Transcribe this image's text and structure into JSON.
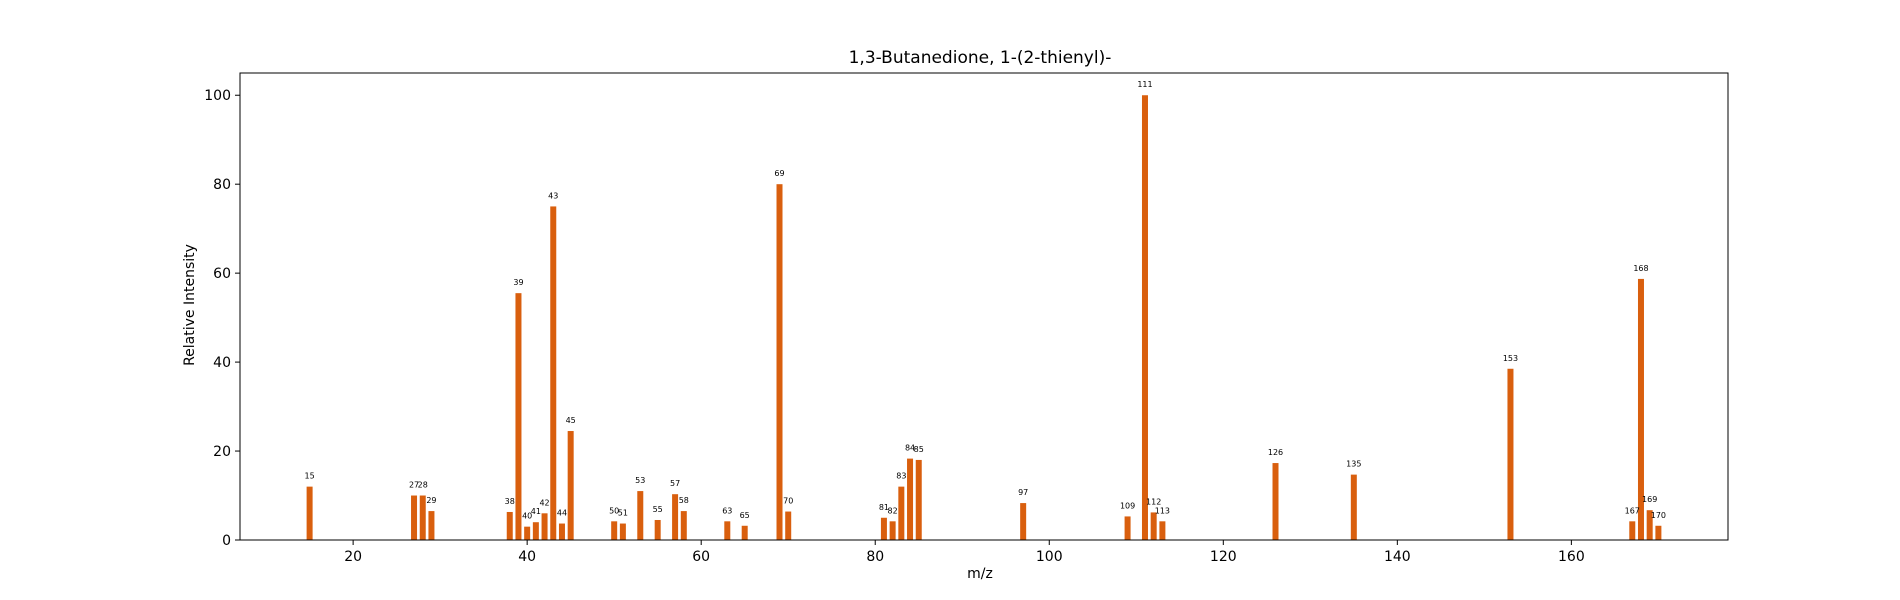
{
  "chart_data": {
    "type": "bar",
    "title": "1,3-Butanedione, 1-(2-thienyl)-",
    "xlabel": "m/z",
    "ylabel": "Relative Intensity",
    "xlim": [
      7,
      178
    ],
    "ylim": [
      0,
      105
    ],
    "xticks": [
      20,
      40,
      60,
      80,
      100,
      120,
      140,
      160
    ],
    "yticks": [
      0,
      20,
      40,
      60,
      80,
      100
    ],
    "grid": false,
    "bar_color": "#d95f0e",
    "x": [
      15,
      27,
      28,
      29,
      38,
      39,
      40,
      41,
      42,
      43,
      44,
      45,
      50,
      51,
      53,
      55,
      57,
      58,
      63,
      65,
      69,
      70,
      81,
      82,
      83,
      84,
      85,
      97,
      109,
      111,
      112,
      113,
      126,
      135,
      153,
      167,
      168,
      169,
      170
    ],
    "values": [
      12,
      10,
      10,
      6.5,
      6.3,
      55.5,
      3,
      4,
      6,
      75,
      3.7,
      24.5,
      4.2,
      3.7,
      11,
      4.5,
      10.3,
      6.5,
      4.2,
      3.2,
      80,
      6.4,
      5,
      4.2,
      12,
      18.3,
      18,
      8.3,
      5.3,
      100,
      6.2,
      4.2,
      17.3,
      14.7,
      38.5,
      4.2,
      58.7,
      6.7,
      3.2
    ],
    "labels": [
      "15",
      "27",
      "28",
      "29",
      "38",
      "39",
      "40",
      "41",
      "42",
      "43",
      "44",
      "45",
      "50",
      "51",
      "53",
      "55",
      "57",
      "58",
      "63",
      "65",
      "69",
      "70",
      "81",
      "82",
      "83",
      "84",
      "85",
      "97",
      "109",
      "111",
      "112",
      "113",
      "126",
      "135",
      "153",
      "167",
      "168",
      "169",
      "170"
    ]
  }
}
